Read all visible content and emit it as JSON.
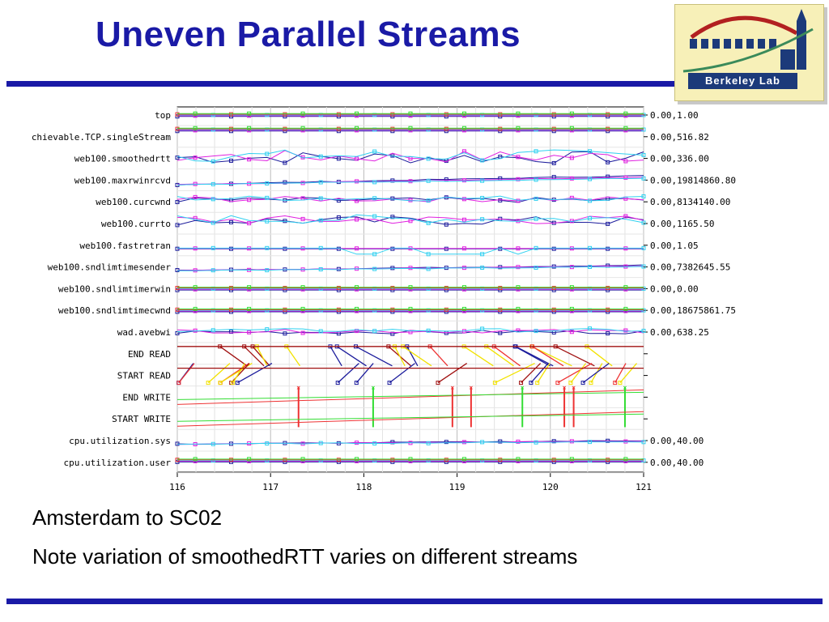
{
  "slide": {
    "title": "Uneven Parallel Streams",
    "captions": [
      "Amsterdam to SC02",
      "Note variation of smoothedRTT varies on different streams"
    ],
    "logo_text": "Berkeley Lab"
  },
  "colors": {
    "title": "#1a1aa6",
    "rule": "#1a1aa6",
    "stream_blue": "#1c1c9c",
    "stream_magenta": "#e020e0",
    "stream_cyan": "#30d0f0",
    "stream_red": "#ee3333",
    "stream_green": "#33dd33",
    "stream_yellow": "#f2e200",
    "stream_darkred": "#a01010"
  },
  "chart_data": {
    "type": "line",
    "x_ticks": [
      "116",
      "117",
      "118",
      "119",
      "120",
      "121"
    ],
    "xlim": [
      116,
      121
    ],
    "grid": true,
    "tracks": [
      {
        "label": "top",
        "range": "0.00,1.00",
        "kind": "flat",
        "base": 0.5
      },
      {
        "label": "chievable.TCP.singleStream",
        "range": "0.00,516.82",
        "kind": "flat",
        "base": 0.9
      },
      {
        "label": "web100.smoothedrtt",
        "range": "0.00,336.00",
        "kind": "wavy",
        "base": 0.55,
        "amp": 0.35
      },
      {
        "label": "web100.maxrwinrcvd",
        "range": "0.00,19814860.80",
        "kind": "ramp",
        "base": 0.25,
        "amp": 0.5
      },
      {
        "label": "web100.curcwnd",
        "range": "0.00,8134140.00",
        "kind": "wavy",
        "base": 0.6,
        "amp": 0.15
      },
      {
        "label": "web100.currto",
        "range": "0.00,1165.50",
        "kind": "wavy",
        "base": 0.65,
        "amp": 0.25
      },
      {
        "label": "web100.fastretran",
        "range": "0.00,1.05",
        "kind": "spiky",
        "base": 0.3,
        "amp": 0.4
      },
      {
        "label": "web100.sndlimtimesender",
        "range": "0.00,7382645.55",
        "kind": "ramp",
        "base": 0.3,
        "amp": 0.3
      },
      {
        "label": "web100.sndlimtimerwin",
        "range": "0.00,0.00",
        "kind": "flat",
        "base": 0.5
      },
      {
        "label": "web100.sndlimtimecwnd",
        "range": "0.00,18675861.75",
        "kind": "flat",
        "base": 0.5
      },
      {
        "label": "wad.avebwi",
        "range": "0.00,638.25",
        "kind": "wavy",
        "base": 0.5,
        "amp": 0.1
      },
      {
        "label": "END READ",
        "range": "",
        "kind": "events",
        "base": 0.5
      },
      {
        "label": "START READ",
        "range": "",
        "kind": "events",
        "base": 0.5
      },
      {
        "label": "END WRITE",
        "range": "",
        "kind": "writes",
        "base": 0.5
      },
      {
        "label": "START WRITE",
        "range": "",
        "kind": "writes",
        "base": 0.5
      },
      {
        "label": "cpu.utilization.sys",
        "range": "0.00,40.00",
        "kind": "ramp",
        "base": 0.3,
        "amp": 0.2
      },
      {
        "label": "cpu.utilization.user",
        "range": "0.00,40.00",
        "kind": "flat",
        "base": 0.6
      }
    ],
    "series_colors": [
      "#1c1c9c",
      "#e020e0",
      "#30d0f0"
    ]
  }
}
